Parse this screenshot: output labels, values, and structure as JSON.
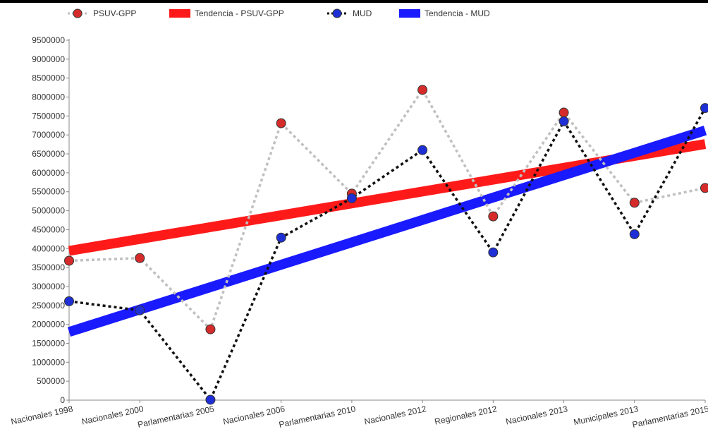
{
  "chart_data": {
    "type": "line",
    "categories": [
      "Nacionales 1998",
      "Nacionales 2000",
      "Parlamentarias 2005",
      "Nacionales 2006",
      "Parlamentarias 2010",
      "Nacionales 2012",
      "Regionales 2012",
      "Nacionales 2013",
      "Municipales 2013",
      "Parlamentarias 2015"
    ],
    "ylim": [
      0,
      9500000
    ],
    "yticks": [
      0,
      500000,
      1000000,
      1500000,
      2000000,
      2500000,
      3000000,
      3500000,
      4000000,
      4500000,
      5000000,
      5500000,
      6000000,
      6500000,
      7000000,
      7500000,
      8000000,
      8500000,
      9000000,
      9500000
    ],
    "grid": false,
    "legend_position": "top",
    "series": [
      {
        "name": "PSUV-GPP",
        "color": "#d62b2b",
        "line_color": "#c0c0c0",
        "values": [
          3680000,
          3750000,
          1870000,
          7310000,
          5450000,
          8190000,
          4850000,
          7590000,
          5210000,
          5600000
        ]
      },
      {
        "name": "MUD",
        "color": "#1f2fd6",
        "line_color": "#111111",
        "values": [
          2610000,
          2370000,
          10000,
          4290000,
          5330000,
          6600000,
          3900000,
          7360000,
          4380000,
          7710000
        ]
      }
    ],
    "trendlines": [
      {
        "name": "Tendencia - PSUV-GPP",
        "color": "#ff1a1a",
        "start": 3940000,
        "end": 6760000
      },
      {
        "name": "Tendencia - MUD",
        "color": "#1a1aff",
        "start": 1800000,
        "end": 7120000
      }
    ]
  }
}
